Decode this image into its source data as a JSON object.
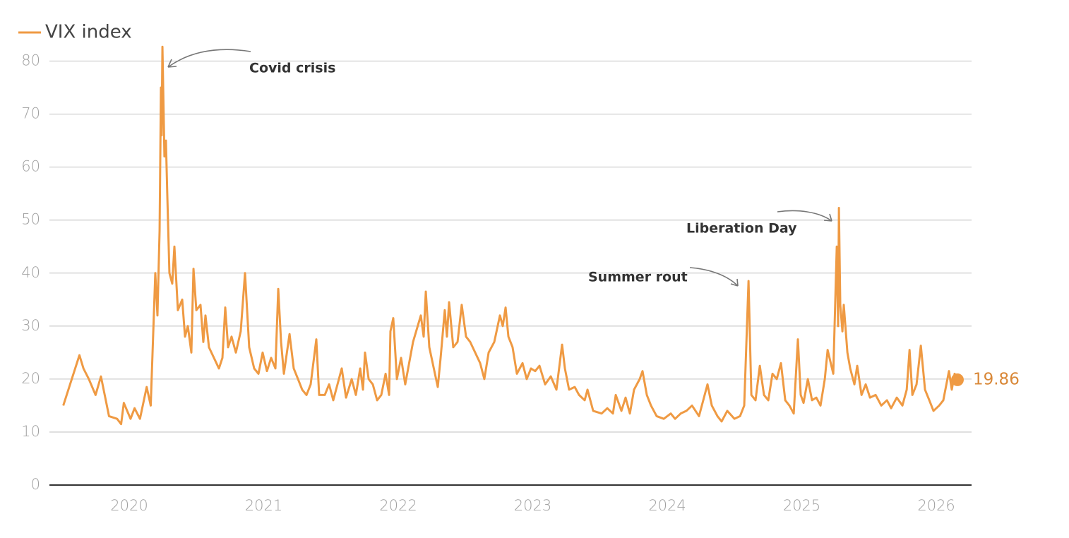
{
  "chart_data": {
    "type": "line",
    "annotations": [
      "Covid crisis",
      "Liberation Day",
      "Summer rout"
    ],
    "xlim": [
      2019.407,
      2026.262
    ],
    "xticks": [
      2020,
      2021,
      2022,
      2023,
      2024,
      2025,
      2026
    ],
    "ylim": [
      0,
      85
    ],
    "yticks": [
      0,
      10,
      20,
      30,
      40,
      50,
      60,
      70,
      80
    ],
    "grid": true,
    "legend": "top-left",
    "x": [
      2019.51,
      2019.63,
      2019.66,
      2019.7,
      2019.75,
      2019.79,
      2019.85,
      2019.91,
      2019.94,
      2019.96,
      2020.01,
      2020.04,
      2020.08,
      2020.13,
      2020.16,
      2020.194,
      2020.21,
      2020.226,
      2020.236,
      2020.241,
      2020.247,
      2020.262,
      2020.273,
      2020.283,
      2020.299,
      2020.32,
      2020.336,
      2020.362,
      2020.394,
      2020.415,
      2020.436,
      2020.462,
      2020.478,
      2020.499,
      2020.53,
      2020.551,
      2020.567,
      2020.593,
      2020.63,
      2020.667,
      2020.693,
      2020.714,
      2020.735,
      2020.761,
      2020.793,
      2020.829,
      2020.861,
      2020.892,
      2020.929,
      2020.961,
      2020.992,
      2021.024,
      2021.055,
      2021.087,
      2021.108,
      2021.129,
      2021.15,
      2021.192,
      2021.223,
      2021.255,
      2021.286,
      2021.318,
      2021.349,
      2021.391,
      2021.412,
      2021.454,
      2021.486,
      2021.517,
      2021.58,
      2021.612,
      2021.654,
      2021.685,
      2021.717,
      2021.738,
      2021.753,
      2021.78,
      2021.811,
      2021.843,
      2021.874,
      2021.906,
      2021.932,
      2021.942,
      2021.963,
      2021.99,
      2022.021,
      2022.052,
      2022.11,
      2022.168,
      2022.189,
      2022.205,
      2022.231,
      2022.273,
      2022.294,
      2022.315,
      2022.346,
      2022.362,
      2022.378,
      2022.409,
      2022.441,
      2022.472,
      2022.504,
      2022.535,
      2022.609,
      2022.64,
      2022.672,
      2022.714,
      2022.756,
      2022.777,
      2022.798,
      2022.819,
      2022.85,
      2022.882,
      2022.924,
      2022.955,
      2022.987,
      2023.018,
      2023.05,
      2023.092,
      2023.134,
      2023.176,
      2023.218,
      2023.239,
      2023.27,
      2023.312,
      2023.344,
      2023.386,
      2023.407,
      2023.449,
      2023.512,
      2023.554,
      2023.596,
      2023.617,
      2023.659,
      2023.69,
      2023.722,
      2023.753,
      2023.795,
      2023.816,
      2023.848,
      2023.879,
      2023.921,
      2023.974,
      2024.026,
      2024.058,
      2024.1,
      2024.142,
      2024.184,
      2024.236,
      2024.299,
      2024.331,
      2024.373,
      2024.404,
      2024.446,
      2024.499,
      2024.541,
      2024.572,
      2024.604,
      2024.625,
      2024.656,
      2024.688,
      2024.719,
      2024.751,
      2024.782,
      2024.814,
      2024.845,
      2024.877,
      2024.908,
      2024.94,
      2024.971,
      2024.992,
      2025.013,
      2025.045,
      2025.076,
      2025.108,
      2025.139,
      2025.171,
      2025.192,
      2025.234,
      2025.26,
      2025.27,
      2025.276,
      2025.286,
      2025.302,
      2025.312,
      2025.339,
      2025.36,
      2025.391,
      2025.412,
      2025.444,
      2025.475,
      2025.507,
      2025.549,
      2025.591,
      2025.633,
      2025.664,
      2025.706,
      2025.748,
      2025.78,
      2025.801,
      2025.822,
      2025.853,
      2025.885,
      2025.916,
      2025.948,
      2025.979,
      2026.021,
      2026.052,
      2026.094,
      2026.115,
      2026.136,
      2026.157
    ],
    "series": [
      {
        "name": "VIX index",
        "color": "#ef9a43",
        "values": [
          15,
          24.5,
          22,
          20,
          17,
          20.5,
          13,
          12.5,
          11.5,
          15.5,
          12.5,
          14.5,
          12.5,
          18.5,
          15,
          40,
          32,
          48,
          75,
          66,
          82.7,
          62,
          65,
          55,
          40,
          38,
          45,
          33,
          35,
          28,
          30,
          25,
          40.8,
          33,
          34,
          27,
          32,
          26,
          24,
          22,
          24,
          33.5,
          26,
          28,
          25,
          29,
          40,
          26,
          22,
          21,
          25,
          21.5,
          24,
          22,
          37,
          27,
          21,
          28.5,
          22,
          20,
          18,
          17,
          19,
          27.5,
          17,
          17,
          19,
          16,
          22,
          16.5,
          20,
          17,
          22,
          18,
          25,
          20,
          19,
          16,
          17,
          21,
          17,
          29,
          31.5,
          20,
          24,
          19,
          27,
          32,
          28,
          36.5,
          26,
          21,
          18.5,
          24,
          33,
          28,
          34.5,
          26,
          27,
          34,
          28,
          27,
          23,
          20,
          25,
          27,
          32,
          30,
          33.5,
          28,
          26,
          21,
          23,
          20,
          22,
          21.5,
          22.5,
          19,
          20.5,
          18,
          26.5,
          22,
          18,
          18.5,
          17,
          16,
          18,
          14,
          13.5,
          14.5,
          13.5,
          17,
          14,
          16.5,
          13.5,
          18,
          20,
          21.5,
          17,
          15,
          13,
          12.5,
          13.5,
          12.5,
          13.5,
          14,
          15,
          13,
          19,
          15,
          13,
          12,
          14,
          12.5,
          13,
          15,
          38.5,
          17,
          16,
          22.5,
          17,
          16,
          21,
          20,
          23,
          16,
          15,
          13.5,
          27.5,
          17,
          15.5,
          20,
          16,
          16.5,
          15,
          20,
          25.5,
          21,
          45,
          30,
          52.3,
          34,
          29,
          34,
          25,
          22,
          19,
          22.5,
          17,
          19,
          16.5,
          17,
          15,
          16,
          14.5,
          16.5,
          15,
          18,
          25.5,
          17,
          19,
          26.3,
          18,
          16,
          14,
          15,
          16,
          21.5,
          18,
          21,
          19.86
        ]
      }
    ]
  }
}
